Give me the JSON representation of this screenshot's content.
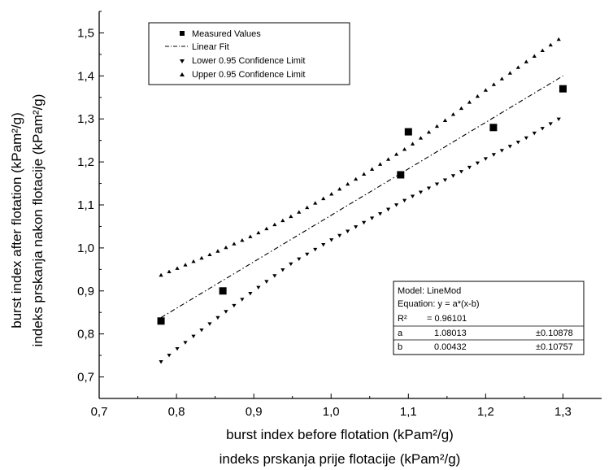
{
  "chart_data": {
    "type": "scatter",
    "xlabel_en": "burst index before flotation (kPam²/g)",
    "xlabel_hr": "indeks prskanja prije flotacije (kPam²/g)",
    "ylabel_en": "burst index after flotation (kPam²/g)",
    "ylabel_hr": "indeks prskanja nakon flotacije (kPam²/g)",
    "xlim": [
      0.7,
      1.35
    ],
    "ylim": [
      0.65,
      1.55
    ],
    "x_ticks": [
      0.7,
      0.8,
      0.9,
      1.0,
      1.1,
      1.2,
      1.3
    ],
    "x_tick_labels": [
      "0,7",
      "0,8",
      "0,9",
      "1,0",
      "1,1",
      "1,2",
      "1,3"
    ],
    "y_ticks": [
      0.7,
      0.8,
      0.9,
      1.0,
      1.1,
      1.2,
      1.3,
      1.4,
      1.5
    ],
    "y_tick_labels": [
      "0,7",
      "0,8",
      "0,9",
      "1,0",
      "1,1",
      "1,2",
      "1,3",
      "1,4",
      "1,5"
    ],
    "grid": false,
    "legend_position": "top-left",
    "series": [
      {
        "name": "Measured Values",
        "marker": "square",
        "x": [
          0.78,
          0.86,
          1.09,
          1.1,
          1.21,
          1.3
        ],
        "y": [
          0.83,
          0.9,
          1.17,
          1.27,
          1.28,
          1.37
        ]
      },
      {
        "name": "Linear Fit",
        "style": "dash-dot",
        "x": [
          0.78,
          1.3
        ],
        "y": [
          0.838,
          1.4
        ]
      },
      {
        "name": "Lower 0.95 Confidence Limit",
        "marker": "triangle-down",
        "x": [
          0.78,
          0.8,
          0.85,
          0.9,
          0.95,
          1.0,
          1.05,
          1.1,
          1.15,
          1.2,
          1.25,
          1.3
        ],
        "y": [
          0.735,
          0.764,
          0.833,
          0.9,
          0.965,
          1.018,
          1.066,
          1.115,
          1.16,
          1.207,
          1.253,
          1.305
        ]
      },
      {
        "name": "Upper 0.95 Confidence Limit",
        "marker": "triangle-up",
        "x": [
          0.78,
          0.8,
          0.85,
          0.9,
          0.95,
          1.0,
          1.05,
          1.1,
          1.15,
          1.2,
          1.25,
          1.3
        ],
        "y": [
          0.937,
          0.952,
          0.99,
          1.03,
          1.075,
          1.125,
          1.18,
          1.235,
          1.3,
          1.367,
          1.43,
          1.492
        ]
      }
    ],
    "stats_box": {
      "model": "Model: LineMod",
      "equation": "Equation: y = a*(x-b)",
      "r2_label": "R²",
      "r2_value": "=  0.96101",
      "params": [
        {
          "name": "a",
          "value": "1.08013",
          "error": "±0.10878"
        },
        {
          "name": "b",
          "value": "0.00432",
          "error": "±0.10757"
        }
      ]
    }
  }
}
